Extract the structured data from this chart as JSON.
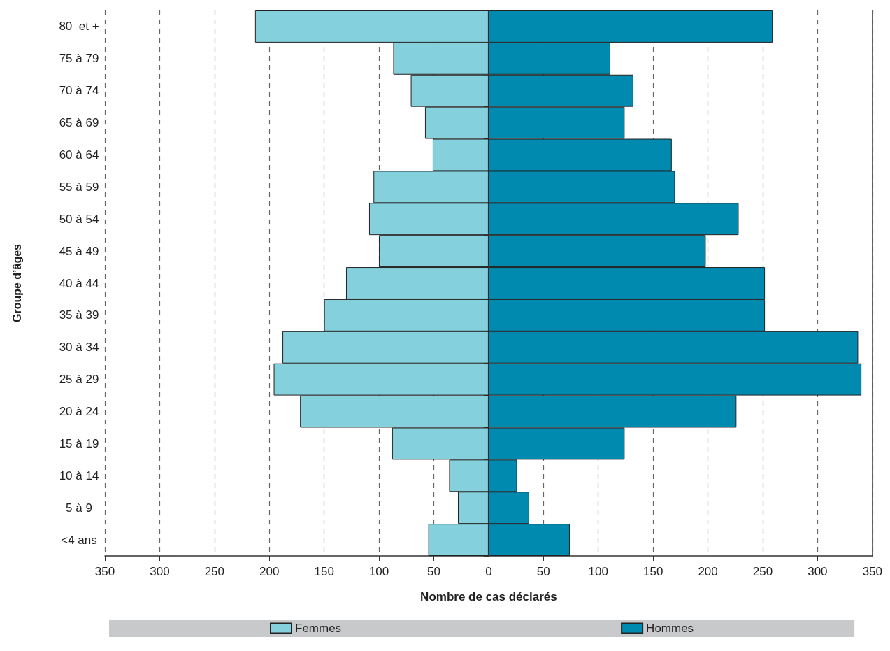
{
  "chart_data": {
    "type": "bar",
    "orientation": "horizontal",
    "stacked": true,
    "xlabel": "Nombre de cas déclarés",
    "ylabel": "Groupe d’âges",
    "categories": [
      "80  et +",
      "75 à 79",
      "70 à 74",
      "65 à 69",
      "60 à 64",
      "55 à 59",
      "50 à 54",
      "45 à 49",
      "40 à 44",
      "35 à 39",
      "30 à 34",
      "25 à 29",
      "20 à 24",
      "15 à 19",
      "10 à 14",
      "5 à 9",
      "<4 ans"
    ],
    "series": [
      {
        "name": "Femmes",
        "color": "#84d0dd",
        "values": [
          -213,
          -87,
          -71,
          -58,
          -51,
          -105,
          -109,
          -100,
          -130,
          -150,
          -188,
          -196,
          -172,
          -88,
          -36,
          -28,
          -55
        ]
      },
      {
        "name": "Hommes",
        "color": "#008aaf",
        "values": [
          259,
          111,
          132,
          124,
          167,
          170,
          228,
          198,
          252,
          252,
          337,
          340,
          226,
          124,
          26,
          37,
          74
        ]
      }
    ],
    "xlim": [
      -350,
      350
    ],
    "xticks": [
      {
        "value": -350,
        "label": "350"
      },
      {
        "value": -300,
        "label": "300"
      },
      {
        "value": -250,
        "label": "250"
      },
      {
        "value": -200,
        "label": "200"
      },
      {
        "value": -150,
        "label": "150"
      },
      {
        "value": -100,
        "label": "100"
      },
      {
        "value": -50,
        "label": "50"
      },
      0,
      50,
      100,
      150,
      200,
      250,
      300,
      350
    ],
    "grid": "x",
    "legend": "bottom"
  }
}
